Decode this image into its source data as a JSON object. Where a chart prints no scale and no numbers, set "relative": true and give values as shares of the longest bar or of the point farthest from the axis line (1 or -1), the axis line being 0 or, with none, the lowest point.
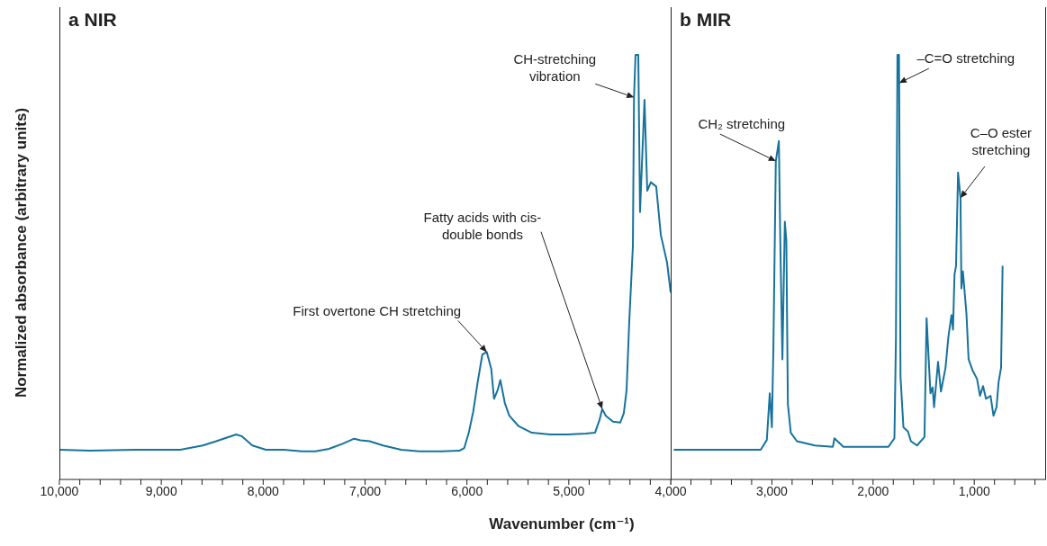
{
  "chart_data": [
    {
      "type": "line",
      "title": "a NIR",
      "xlabel": "Wavenumber (cm⁻¹)",
      "ylabel": "Normalized absorbance (arbitrary units)",
      "relative": true,
      "tick_labels": "x",
      "xlim": [
        10000,
        4000
      ],
      "xticks": [
        {
          "value": 10000,
          "label": "10,000"
        },
        {
          "value": 9800,
          "label": null
        },
        {
          "value": 9600,
          "label": null
        },
        {
          "value": 9400,
          "label": null
        },
        {
          "value": 9200,
          "label": null
        },
        {
          "value": 9000,
          "label": "9,000"
        },
        {
          "value": 8800,
          "label": null
        },
        {
          "value": 8600,
          "label": null
        },
        {
          "value": 8400,
          "label": null
        },
        {
          "value": 8200,
          "label": null
        },
        {
          "value": 8000,
          "label": "8,000"
        },
        {
          "value": 7800,
          "label": null
        },
        {
          "value": 7600,
          "label": null
        },
        {
          "value": 7400,
          "label": null
        },
        {
          "value": 7200,
          "label": null
        },
        {
          "value": 7000,
          "label": "7,000"
        },
        {
          "value": 6800,
          "label": null
        },
        {
          "value": 6600,
          "label": null
        },
        {
          "value": 6400,
          "label": null
        },
        {
          "value": 6200,
          "label": null
        },
        {
          "value": 6000,
          "label": "6,000"
        },
        {
          "value": 5800,
          "label": null
        },
        {
          "value": 5600,
          "label": null
        },
        {
          "value": 5400,
          "label": null
        },
        {
          "value": 5200,
          "label": null
        },
        {
          "value": 5000,
          "label": "5,000"
        },
        {
          "value": 4800,
          "label": null
        },
        {
          "value": 4600,
          "label": null
        },
        {
          "value": 4400,
          "label": null
        },
        {
          "value": 4200,
          "label": null
        },
        {
          "value": 4000,
          "label": "4,000"
        }
      ],
      "x": [
        10000,
        9699,
        9257,
        8814,
        8593,
        8460,
        8265,
        8212,
        8106,
        7973,
        7796,
        7619,
        7487,
        7354,
        7221,
        7106,
        7044,
        6956,
        6823,
        6646,
        6469,
        6248,
        6071,
        6026,
        5982,
        5938,
        5894,
        5849,
        5805,
        5761,
        5734,
        5699,
        5672,
        5628,
        5584,
        5495,
        5363,
        5186,
        5009,
        4832,
        4743,
        4699,
        4672,
        4637,
        4566,
        4495,
        4460,
        4433,
        4407,
        4371,
        4360,
        4345,
        4318,
        4301,
        4257,
        4230,
        4195,
        4142,
        4097,
        4035,
        4000
      ],
      "series": [
        {
          "color": "#17739b",
          "values": [
            0.07,
            0.068,
            0.07,
            0.07,
            0.08,
            0.09,
            0.106,
            0.102,
            0.08,
            0.07,
            0.07,
            0.066,
            0.066,
            0.072,
            0.084,
            0.096,
            0.092,
            0.09,
            0.08,
            0.07,
            0.066,
            0.066,
            0.068,
            0.074,
            0.11,
            0.16,
            0.23,
            0.294,
            0.3,
            0.26,
            0.19,
            0.21,
            0.234,
            0.18,
            0.15,
            0.126,
            0.11,
            0.106,
            0.106,
            0.108,
            0.11,
            0.14,
            0.166,
            0.15,
            0.136,
            0.134,
            0.156,
            0.21,
            0.37,
            0.55,
            0.9,
            1.0,
            1.0,
            0.63,
            0.894,
            0.68,
            0.7,
            0.69,
            0.576,
            0.51,
            0.44
          ]
        }
      ],
      "annotations": [
        {
          "text": "First overtone CH stretching",
          "x": 5805,
          "y": 0.3
        },
        {
          "text": "Fatty acids with cis-double bonds",
          "x": 4672,
          "y": 0.166
        },
        {
          "text": "CH-stretching vibration",
          "x": 4360,
          "y": 0.9
        }
      ]
    },
    {
      "type": "line",
      "title": "b MIR",
      "relative": true,
      "tick_labels": "x",
      "xlim": [
        4000,
        290
      ],
      "xticks": [
        {
          "value": 4000,
          "label": null
        },
        {
          "value": 3800,
          "label": null
        },
        {
          "value": 3600,
          "label": null
        },
        {
          "value": 3400,
          "label": null
        },
        {
          "value": 3200,
          "label": null
        },
        {
          "value": 3000,
          "label": "3,000"
        },
        {
          "value": 2800,
          "label": null
        },
        {
          "value": 2600,
          "label": null
        },
        {
          "value": 2400,
          "label": null
        },
        {
          "value": 2200,
          "label": null
        },
        {
          "value": 2000,
          "label": "2,000"
        },
        {
          "value": 1800,
          "label": null
        },
        {
          "value": 1600,
          "label": null
        },
        {
          "value": 1400,
          "label": null
        },
        {
          "value": 1200,
          "label": null
        },
        {
          "value": 1000,
          "label": "1,000"
        },
        {
          "value": 800,
          "label": null
        },
        {
          "value": 600,
          "label": null
        },
        {
          "value": 400,
          "label": null
        }
      ],
      "x": [
        3970,
        3110,
        3050,
        3021,
        3000,
        2985,
        2961,
        2931,
        2917,
        2896,
        2872,
        2857,
        2842,
        2813,
        2753,
        2575,
        2397,
        2382,
        2293,
        1848,
        1789,
        1774,
        1759,
        1744,
        1742,
        1729,
        1700,
        1655,
        1626,
        1566,
        1492,
        1471,
        1433,
        1412,
        1397,
        1358,
        1329,
        1284,
        1255,
        1225,
        1210,
        1195,
        1180,
        1160,
        1136,
        1127,
        1112,
        1077,
        1056,
        1017,
        973,
        943,
        913,
        884,
        839,
        810,
        780,
        759,
        735,
        720
      ],
      "series": [
        {
          "color": "#17739b",
          "values": [
            0.07,
            0.07,
            0.093,
            0.203,
            0.123,
            0.31,
            0.75,
            0.797,
            0.563,
            0.283,
            0.607,
            0.563,
            0.177,
            0.11,
            0.09,
            0.08,
            0.077,
            0.097,
            0.077,
            0.077,
            0.097,
            0.33,
            1.0,
            1.0,
            0.934,
            0.243,
            0.123,
            0.113,
            0.09,
            0.08,
            0.1,
            0.38,
            0.203,
            0.217,
            0.17,
            0.277,
            0.207,
            0.263,
            0.337,
            0.387,
            0.353,
            0.483,
            0.503,
            0.723,
            0.663,
            0.45,
            0.49,
            0.39,
            0.283,
            0.257,
            0.237,
            0.197,
            0.22,
            0.19,
            0.197,
            0.15,
            0.17,
            0.23,
            0.263,
            0.503
          ]
        }
      ],
      "annotations": [
        {
          "text": "CH₂ stretching",
          "x": 2961,
          "y": 0.75
        },
        {
          "text": "–C=O stretching",
          "x": 1742,
          "y": 0.934
        },
        {
          "text": "C–O ester stretching",
          "x": 1136,
          "y": 0.663
        }
      ]
    }
  ]
}
